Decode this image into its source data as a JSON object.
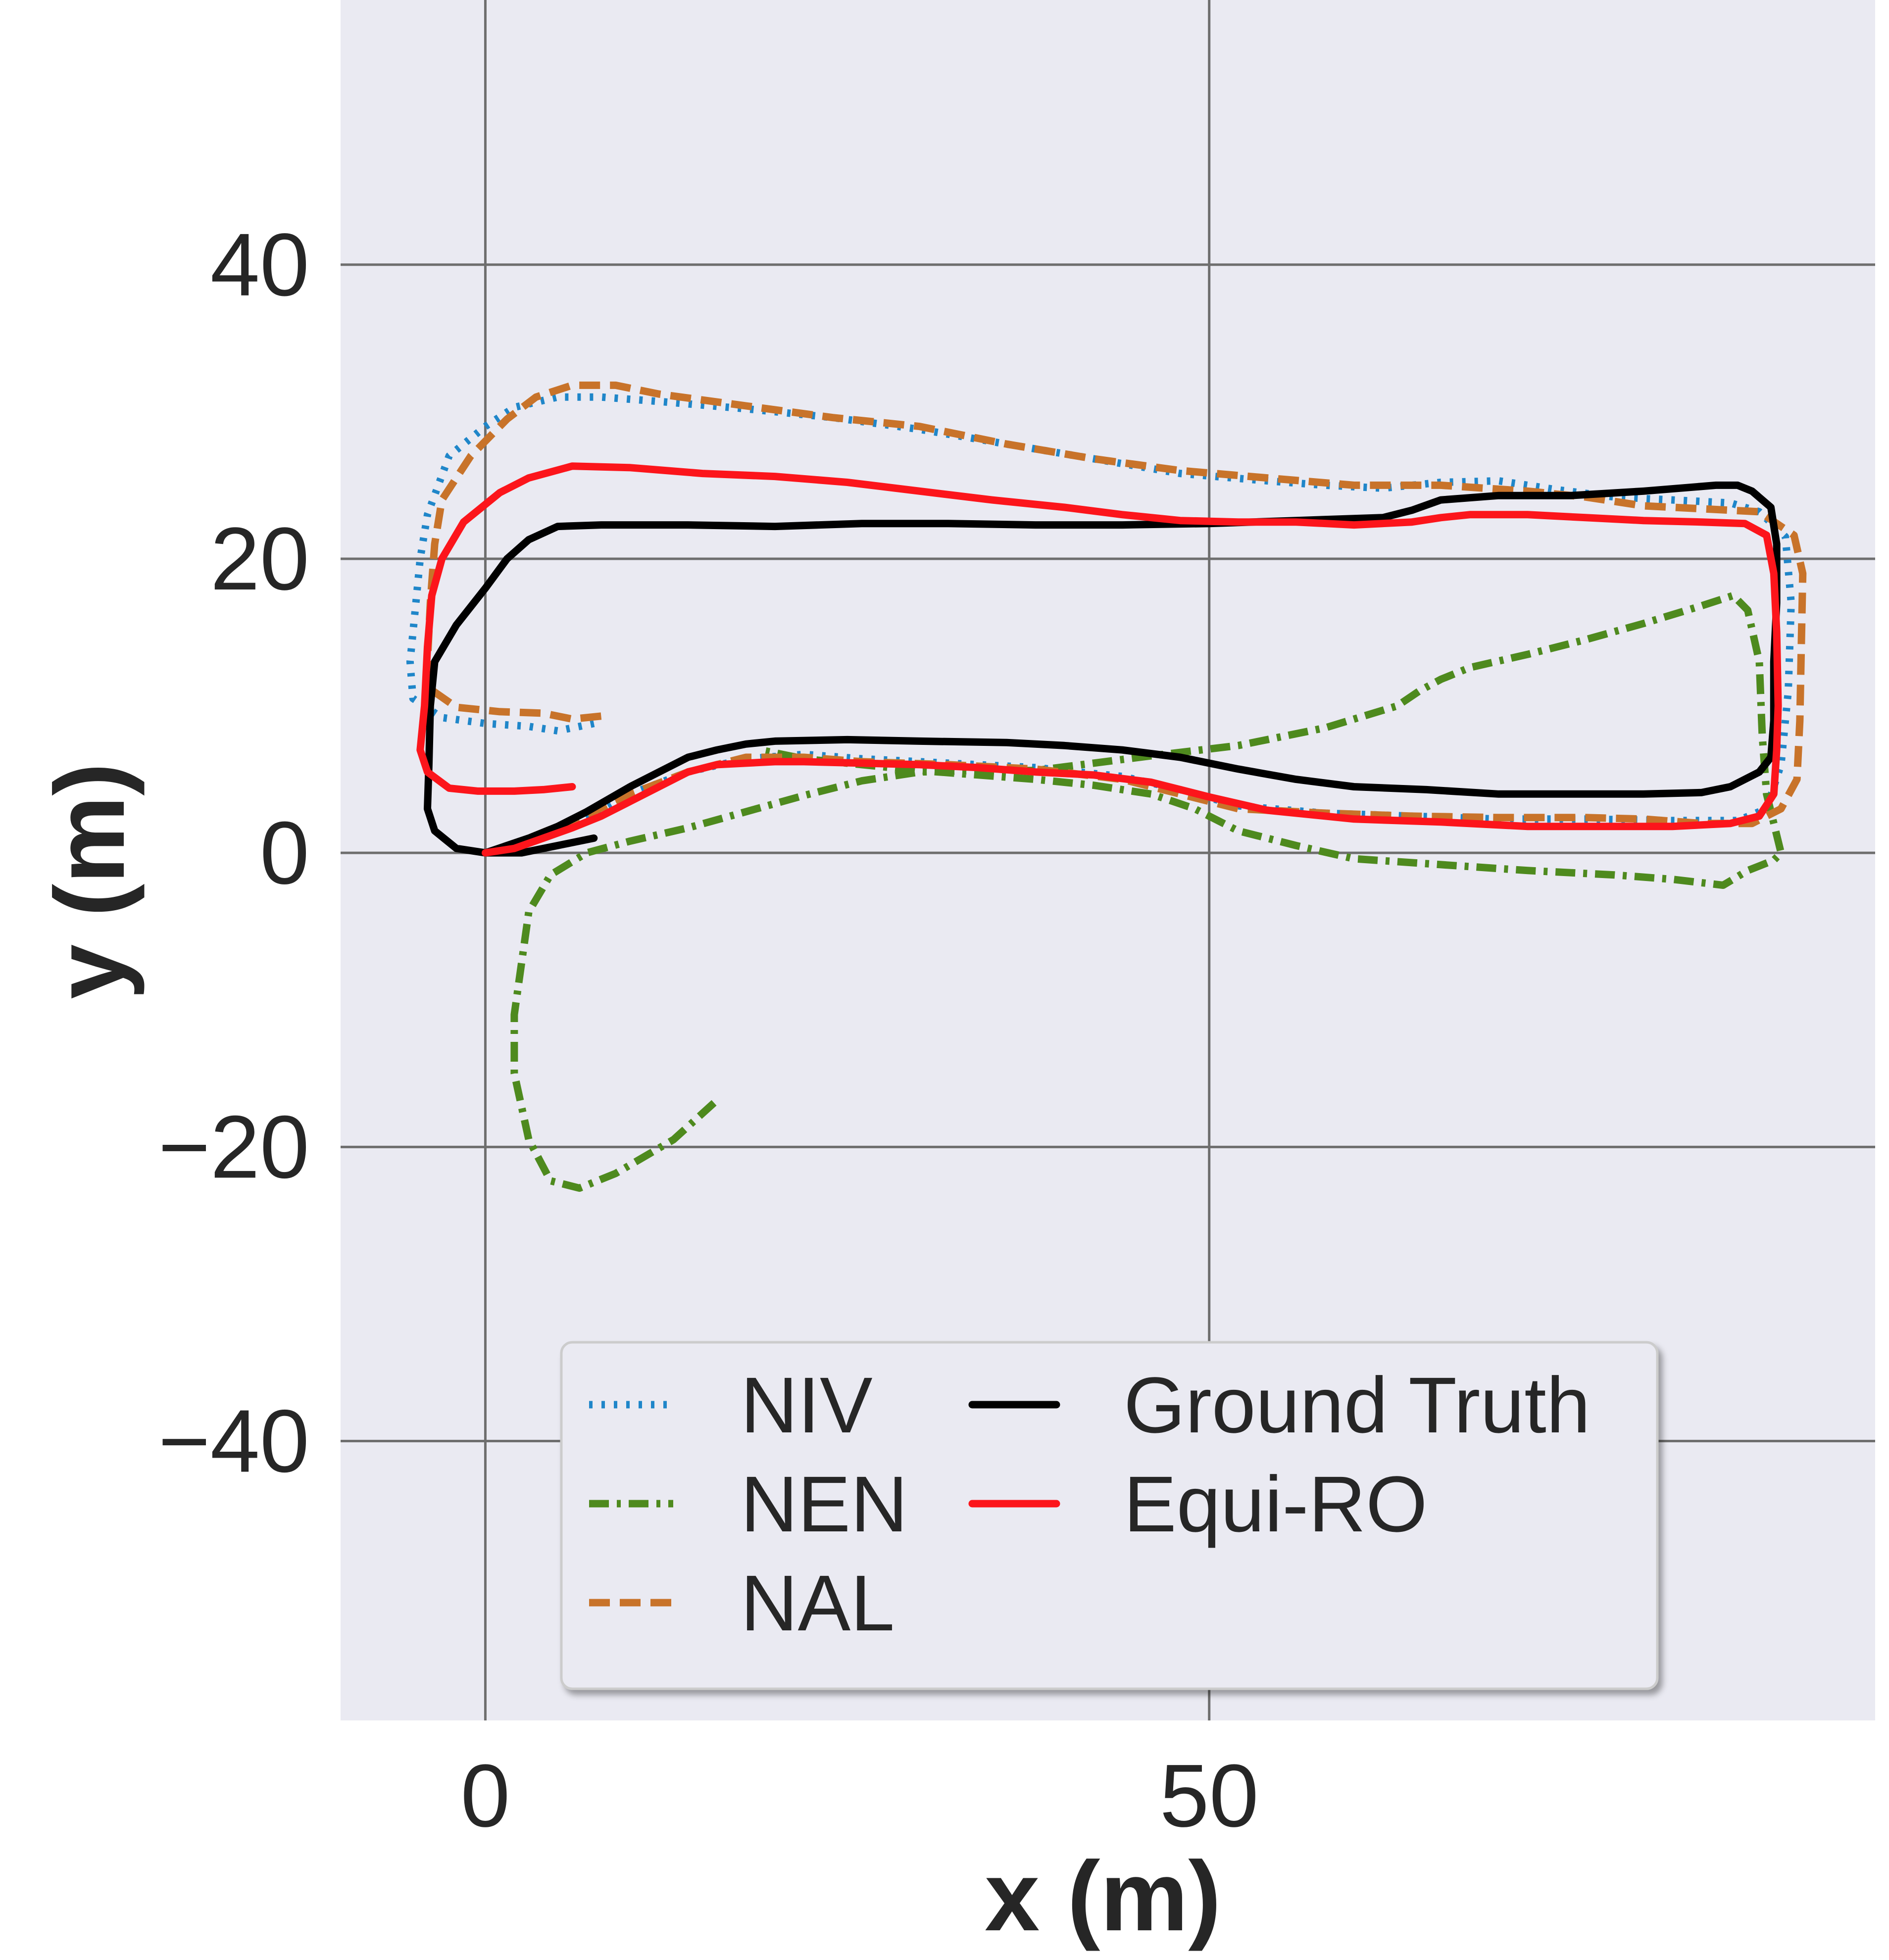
{
  "chart_data": {
    "type": "line",
    "title": "",
    "xlabel": "x (m)",
    "ylabel": "y (m)",
    "xlim": [
      -10,
      96
    ],
    "ylim": [
      -59,
      58
    ],
    "xticks": [
      0,
      50
    ],
    "yticks": [
      -40,
      -20,
      0,
      20,
      40
    ],
    "xtick_labels": [
      "0",
      "50"
    ],
    "ytick_labels": [
      "−40",
      "−20",
      "0",
      "20",
      "40"
    ],
    "grid": true,
    "background": "#eaeaf2",
    "grid_color": "#6e6e6e",
    "legend_placement": "lower-center",
    "legend_columns": 2,
    "series": [
      {
        "name": "NIV",
        "color": "#1f86c9",
        "style": "dotted",
        "points": [
          [
            7.5,
            8.8
          ],
          [
            5,
            8.3
          ],
          [
            3,
            8.6
          ],
          [
            0,
            8.8
          ],
          [
            -3,
            9.2
          ],
          [
            -5,
            10.5
          ],
          [
            -5.2,
            13
          ],
          [
            -4.8,
            17
          ],
          [
            -4.5,
            20
          ],
          [
            -4,
            23
          ],
          [
            -2.5,
            27
          ],
          [
            0,
            29
          ],
          [
            2,
            30.3
          ],
          [
            5,
            31
          ],
          [
            8,
            31
          ],
          [
            12,
            30.7
          ],
          [
            18,
            30.2
          ],
          [
            24,
            29.6
          ],
          [
            30,
            28.8
          ],
          [
            36,
            27.8
          ],
          [
            42,
            26.8
          ],
          [
            48,
            25.8
          ],
          [
            54,
            25.3
          ],
          [
            58,
            25
          ],
          [
            62,
            24.8
          ],
          [
            66,
            25.2
          ],
          [
            70,
            25.3
          ],
          [
            74,
            24.7
          ],
          [
            78,
            24.2
          ],
          [
            82,
            24
          ],
          [
            86,
            23.8
          ],
          [
            88,
            23.2
          ],
          [
            89.8,
            21.5
          ],
          [
            90.2,
            17
          ],
          [
            90,
            11
          ],
          [
            89.5,
            6
          ],
          [
            88.5,
            3
          ],
          [
            86.5,
            2.2
          ],
          [
            82,
            2.2
          ],
          [
            76,
            2.3
          ],
          [
            70,
            2.3
          ],
          [
            64,
            2.5
          ],
          [
            58,
            2.7
          ],
          [
            52,
            3.2
          ],
          [
            48,
            4.3
          ],
          [
            44,
            5.2
          ],
          [
            38,
            5.8
          ],
          [
            32,
            6.1
          ],
          [
            26,
            6.4
          ],
          [
            22,
            6.7
          ],
          [
            18,
            6.4
          ],
          [
            14,
            5.5
          ],
          [
            10,
            4
          ],
          [
            7,
            2.3
          ],
          [
            4,
            1
          ],
          [
            1.5,
            0.3
          ],
          [
            0,
            0
          ]
        ]
      },
      {
        "name": "NEN",
        "color": "#4e8a1e",
        "style": "dashdot",
        "points": [
          [
            15.8,
            -17
          ],
          [
            13,
            -19.5
          ],
          [
            9,
            -21.8
          ],
          [
            6.5,
            -22.8
          ],
          [
            4.5,
            -22.3
          ],
          [
            3,
            -19.5
          ],
          [
            2,
            -15
          ],
          [
            2,
            -11
          ],
          [
            3,
            -4
          ],
          [
            4.5,
            -1.5
          ],
          [
            7,
            0
          ],
          [
            10,
            0.8
          ],
          [
            14,
            1.7
          ],
          [
            18,
            2.8
          ],
          [
            22,
            3.9
          ],
          [
            26,
            4.9
          ],
          [
            30,
            5.5
          ],
          [
            34,
            5.6
          ],
          [
            38,
            5.6
          ],
          [
            42,
            6.1
          ],
          [
            46,
            6.6
          ],
          [
            52,
            7.3
          ],
          [
            58,
            8.5
          ],
          [
            63,
            10
          ],
          [
            64.5,
            11
          ],
          [
            66,
            11.8
          ],
          [
            68,
            12.6
          ],
          [
            72,
            13.5
          ],
          [
            76,
            14.5
          ],
          [
            80,
            15.6
          ],
          [
            84,
            16.8
          ],
          [
            86.2,
            17.5
          ],
          [
            87.2,
            16.5
          ],
          [
            88,
            13
          ],
          [
            88.2,
            8
          ],
          [
            88.5,
            4
          ],
          [
            89,
            2
          ],
          [
            89.5,
            0
          ],
          [
            89,
            -0.5
          ],
          [
            87.2,
            -1.2
          ],
          [
            85.5,
            -2.2
          ],
          [
            82,
            -1.8
          ],
          [
            78,
            -1.5
          ],
          [
            72,
            -1.2
          ],
          [
            66,
            -0.8
          ],
          [
            60,
            -0.4
          ],
          [
            56,
            0.5
          ],
          [
            52,
            1.5
          ],
          [
            49,
            3
          ],
          [
            46,
            4
          ],
          [
            42,
            4.6
          ],
          [
            38,
            5
          ],
          [
            34,
            5.3
          ],
          [
            30,
            5.6
          ],
          [
            26,
            6
          ],
          [
            22,
            6.4
          ],
          [
            19,
            7
          ]
        ]
      },
      {
        "name": "NAL",
        "color": "#c8732a",
        "style": "dashed",
        "points": [
          [
            8,
            9.3
          ],
          [
            6,
            9.1
          ],
          [
            4,
            9.5
          ],
          [
            1,
            9.6
          ],
          [
            -2,
            9.9
          ],
          [
            -3.6,
            11
          ],
          [
            -4,
            13
          ],
          [
            -3.8,
            17
          ],
          [
            -3.5,
            21
          ],
          [
            -3,
            24
          ],
          [
            -1,
            27
          ],
          [
            1.5,
            29.5
          ],
          [
            3.5,
            31
          ],
          [
            6,
            31.8
          ],
          [
            9,
            31.8
          ],
          [
            12,
            31.2
          ],
          [
            18,
            30.4
          ],
          [
            24,
            29.6
          ],
          [
            30,
            29
          ],
          [
            36,
            27.8
          ],
          [
            42,
            26.8
          ],
          [
            48,
            26
          ],
          [
            54,
            25.5
          ],
          [
            60,
            25
          ],
          [
            66,
            25
          ],
          [
            72,
            24.6
          ],
          [
            76,
            24.2
          ],
          [
            80,
            23.6
          ],
          [
            84,
            23.4
          ],
          [
            88,
            23.2
          ],
          [
            90.4,
            21.6
          ],
          [
            91,
            19
          ],
          [
            90.9,
            14
          ],
          [
            90.8,
            9
          ],
          [
            90.6,
            5
          ],
          [
            89.5,
            3
          ],
          [
            87.5,
            2
          ],
          [
            84,
            2
          ],
          [
            80,
            2.3
          ],
          [
            76,
            2.4
          ],
          [
            70,
            2.4
          ],
          [
            64,
            2.5
          ],
          [
            58,
            2.7
          ],
          [
            52,
            3
          ],
          [
            48,
            4
          ],
          [
            44,
            5
          ],
          [
            38,
            5.7
          ],
          [
            32,
            6
          ],
          [
            26,
            6.2
          ],
          [
            22,
            6.5
          ],
          [
            18,
            6.5
          ],
          [
            14,
            5.5
          ],
          [
            10,
            4
          ],
          [
            7,
            2.6
          ],
          [
            4,
            1.4
          ],
          [
            2,
            0.6
          ],
          [
            0,
            0
          ]
        ]
      },
      {
        "name": "Ground Truth",
        "color": "#000000",
        "style": "solid",
        "points": [
          [
            7.5,
            1
          ],
          [
            5,
            0.5
          ],
          [
            2.5,
            0
          ],
          [
            0,
            0
          ],
          [
            -2,
            0.3
          ],
          [
            -3.5,
            1.5
          ],
          [
            -4,
            3
          ],
          [
            -3.9,
            6
          ],
          [
            -3.8,
            10
          ],
          [
            -3.5,
            13
          ],
          [
            -2,
            15.5
          ],
          [
            0,
            18
          ],
          [
            1.5,
            20
          ],
          [
            3,
            21.3
          ],
          [
            5,
            22.2
          ],
          [
            8,
            22.3
          ],
          [
            14,
            22.3
          ],
          [
            20,
            22.2
          ],
          [
            26,
            22.4
          ],
          [
            32,
            22.4
          ],
          [
            38,
            22.3
          ],
          [
            44,
            22.3
          ],
          [
            50,
            22.4
          ],
          [
            56,
            22.6
          ],
          [
            62,
            22.8
          ],
          [
            64,
            23.3
          ],
          [
            66,
            24
          ],
          [
            70,
            24.3
          ],
          [
            75,
            24.3
          ],
          [
            80,
            24.6
          ],
          [
            85,
            25
          ],
          [
            86.5,
            25
          ],
          [
            87.5,
            24.6
          ],
          [
            88.8,
            23.5
          ],
          [
            89.2,
            21
          ],
          [
            89.2,
            17
          ],
          [
            89,
            13
          ],
          [
            89,
            9
          ],
          [
            88.8,
            6.5
          ],
          [
            88,
            5.5
          ],
          [
            86,
            4.5
          ],
          [
            84,
            4.1
          ],
          [
            80,
            4
          ],
          [
            75,
            4
          ],
          [
            70,
            4
          ],
          [
            65,
            4.3
          ],
          [
            60,
            4.5
          ],
          [
            56,
            5
          ],
          [
            52,
            5.7
          ],
          [
            48,
            6.5
          ],
          [
            44,
            7
          ],
          [
            40,
            7.3
          ],
          [
            36,
            7.5
          ],
          [
            30,
            7.6
          ],
          [
            25,
            7.7
          ],
          [
            20,
            7.6
          ],
          [
            18,
            7.4
          ],
          [
            16,
            7
          ],
          [
            14,
            6.5
          ],
          [
            12,
            5.5
          ],
          [
            10,
            4.5
          ],
          [
            7,
            2.8
          ],
          [
            5,
            1.8
          ],
          [
            3,
            1
          ],
          [
            0,
            0
          ]
        ]
      },
      {
        "name": "Equi-RO",
        "color": "#fc151b",
        "style": "solid",
        "points": [
          [
            6,
            4.5
          ],
          [
            4,
            4.3
          ],
          [
            2,
            4.2
          ],
          [
            -0.5,
            4.2
          ],
          [
            -2.5,
            4.4
          ],
          [
            -4,
            5.5
          ],
          [
            -4.5,
            7
          ],
          [
            -4.2,
            10
          ],
          [
            -4,
            14
          ],
          [
            -3.7,
            17.5
          ],
          [
            -3,
            20
          ],
          [
            -1.5,
            22.5
          ],
          [
            1,
            24.5
          ],
          [
            3,
            25.5
          ],
          [
            6,
            26.3
          ],
          [
            10,
            26.2
          ],
          [
            15,
            25.8
          ],
          [
            20,
            25.6
          ],
          [
            25,
            25.2
          ],
          [
            30,
            24.6
          ],
          [
            35,
            24
          ],
          [
            40,
            23.5
          ],
          [
            44,
            23
          ],
          [
            48,
            22.6
          ],
          [
            52,
            22.5
          ],
          [
            56,
            22.5
          ],
          [
            60,
            22.3
          ],
          [
            64,
            22.5
          ],
          [
            66,
            22.8
          ],
          [
            68,
            23
          ],
          [
            72,
            23
          ],
          [
            76,
            22.8
          ],
          [
            80,
            22.6
          ],
          [
            84,
            22.5
          ],
          [
            87,
            22.4
          ],
          [
            88.5,
            21.6
          ],
          [
            89,
            19
          ],
          [
            89.2,
            15
          ],
          [
            89.3,
            10
          ],
          [
            89.2,
            7
          ],
          [
            89,
            4
          ],
          [
            88,
            2.5
          ],
          [
            86,
            2
          ],
          [
            82,
            1.8
          ],
          [
            78,
            1.8
          ],
          [
            72,
            1.8
          ],
          [
            66,
            2.1
          ],
          [
            60,
            2.3
          ],
          [
            54,
            2.9
          ],
          [
            50,
            3.8
          ],
          [
            46,
            4.8
          ],
          [
            42,
            5.3
          ],
          [
            38,
            5.5
          ],
          [
            34,
            5.8
          ],
          [
            30,
            6
          ],
          [
            26,
            6.1
          ],
          [
            22,
            6.2
          ],
          [
            20,
            6.2
          ],
          [
            18,
            6.1
          ],
          [
            16,
            6
          ],
          [
            14,
            5.5
          ],
          [
            12,
            4.5
          ],
          [
            10,
            3.5
          ],
          [
            8,
            2.5
          ],
          [
            6,
            1.7
          ],
          [
            4,
            1
          ],
          [
            2,
            0.3
          ],
          [
            0,
            0
          ]
        ]
      }
    ]
  }
}
